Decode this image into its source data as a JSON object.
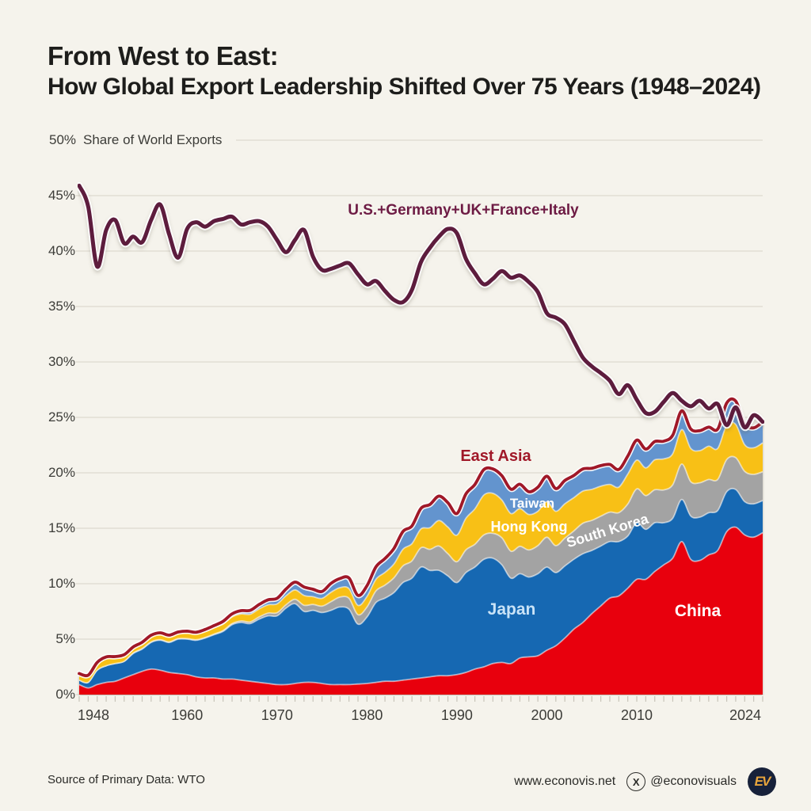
{
  "title": {
    "line1": "From West to East:",
    "line2": "How Global Export Leadership Shifted Over 75 Years (1948–2024)"
  },
  "y_axis": {
    "title": "Share of World Exports",
    "top_tick": "50%",
    "ticks": [
      "45%",
      "40%",
      "35%",
      "30%",
      "25%",
      "20%",
      "15%",
      "10%",
      "5%",
      "0%"
    ],
    "tick_values": [
      45,
      40,
      35,
      30,
      25,
      20,
      15,
      10,
      5,
      0
    ]
  },
  "x_axis": {
    "tick_years": [
      1948,
      1960,
      1970,
      1980,
      1990,
      2000,
      2010,
      2024
    ]
  },
  "annotations": {
    "west_label": "U.S.+Germany+UK+France+Italy",
    "east_asia_label": "East Asia",
    "taiwan_label": "Taiwan",
    "hong_kong_label": "Hong Kong",
    "south_korea_label": "South Korea",
    "japan_label": "Japan",
    "china_label": "China"
  },
  "footer": {
    "source": "Source of Primary Data: WTO",
    "website": "www.econovis.net",
    "x_icon": "X",
    "handle": "@econovisuals",
    "logo_text": "EV"
  },
  "colors": {
    "background": "#f5f3ec",
    "grid": "#ddd9cf",
    "tick": "#c8c4b9",
    "west_line": "#5d1a3e",
    "east_asia_line": "#a01828",
    "china": "#e8000d",
    "japan": "#1668b2",
    "south_korea": "#a3a3a3",
    "hong_kong": "#f8c013",
    "taiwan": "#6494ce"
  },
  "chart_data": {
    "type": "area",
    "title": "From West to East: How Global Export Leadership Shifted Over 75 Years (1948–2024)",
    "ylabel": "Share of World Exports",
    "ylim": [
      0,
      50
    ],
    "xlim": [
      1948,
      2024
    ],
    "grid": true,
    "legend_position": "inline-labels",
    "x": [
      1948,
      1949,
      1950,
      1951,
      1952,
      1953,
      1954,
      1955,
      1956,
      1957,
      1958,
      1959,
      1960,
      1961,
      1962,
      1963,
      1964,
      1965,
      1966,
      1967,
      1968,
      1969,
      1970,
      1971,
      1972,
      1973,
      1974,
      1975,
      1976,
      1977,
      1978,
      1979,
      1980,
      1981,
      1982,
      1983,
      1984,
      1985,
      1986,
      1987,
      1988,
      1989,
      1990,
      1991,
      1992,
      1993,
      1994,
      1995,
      1996,
      1997,
      1998,
      1999,
      2000,
      2001,
      2002,
      2003,
      2004,
      2005,
      2006,
      2007,
      2008,
      2009,
      2010,
      2011,
      2012,
      2013,
      2014,
      2015,
      2016,
      2017,
      2018,
      2019,
      2020,
      2021,
      2022,
      2023,
      2024
    ],
    "west_line_series": {
      "name": "U.S.+Germany+UK+France+Italy",
      "values": [
        45.9,
        44.0,
        38.6,
        41.9,
        42.8,
        40.7,
        41.3,
        40.8,
        42.8,
        44.2,
        41.5,
        39.4,
        42.0,
        42.6,
        42.2,
        42.7,
        42.9,
        43.1,
        42.4,
        42.6,
        42.7,
        42.2,
        41.0,
        39.9,
        41.0,
        41.9,
        39.5,
        38.3,
        38.4,
        38.7,
        38.9,
        37.9,
        37.0,
        37.3,
        36.4,
        35.6,
        35.4,
        36.5,
        39.0,
        40.3,
        41.3,
        42.0,
        41.6,
        39.3,
        38.0,
        37.0,
        37.5,
        38.2,
        37.6,
        37.8,
        37.2,
        36.3,
        34.4,
        34.0,
        33.4,
        31.9,
        30.4,
        29.6,
        29.0,
        28.3,
        27.1,
        27.9,
        26.6,
        25.4,
        25.5,
        26.4,
        27.2,
        26.5,
        26.0,
        26.5,
        25.8,
        26.2,
        24.3,
        25.9,
        24.1,
        25.2,
        24.6
      ]
    },
    "stacked_series": [
      {
        "name": "China",
        "color_key": "china",
        "values": [
          0.9,
          0.6,
          0.9,
          1.1,
          1.2,
          1.5,
          1.8,
          2.1,
          2.3,
          2.2,
          2.0,
          1.9,
          1.8,
          1.6,
          1.5,
          1.5,
          1.4,
          1.4,
          1.3,
          1.2,
          1.1,
          1.0,
          0.9,
          0.9,
          1.0,
          1.1,
          1.1,
          1.0,
          0.9,
          0.9,
          0.9,
          0.95,
          1.0,
          1.1,
          1.2,
          1.2,
          1.3,
          1.4,
          1.5,
          1.6,
          1.7,
          1.7,
          1.8,
          2.0,
          2.3,
          2.5,
          2.8,
          2.9,
          2.8,
          3.3,
          3.4,
          3.5,
          4.0,
          4.4,
          5.1,
          5.9,
          6.5,
          7.3,
          8.0,
          8.7,
          8.9,
          9.6,
          10.4,
          10.4,
          11.1,
          11.7,
          12.3,
          13.8,
          12.2,
          12.1,
          12.6,
          13.0,
          14.7,
          15.1,
          14.4,
          14.2,
          14.6
        ]
      },
      {
        "name": "Japan",
        "color_key": "japan",
        "values": [
          0.4,
          0.5,
          1.3,
          1.5,
          1.6,
          1.5,
          1.9,
          2.0,
          2.4,
          2.7,
          2.7,
          3.1,
          3.2,
          3.3,
          3.6,
          3.9,
          4.3,
          4.9,
          5.2,
          5.2,
          5.7,
          6.1,
          6.2,
          6.9,
          7.2,
          6.4,
          6.5,
          6.4,
          6.7,
          7.0,
          6.8,
          5.4,
          6.0,
          7.2,
          7.5,
          8.0,
          8.8,
          9.1,
          10.0,
          9.6,
          9.5,
          9.0,
          8.3,
          9.0,
          9.2,
          9.7,
          9.5,
          8.8,
          7.7,
          7.6,
          7.2,
          7.4,
          7.5,
          6.6,
          6.5,
          6.3,
          6.2,
          5.7,
          5.4,
          5.1,
          4.9,
          4.7,
          5.1,
          4.5,
          4.4,
          3.8,
          3.6,
          3.8,
          3.9,
          3.9,
          3.8,
          3.6,
          3.6,
          3.4,
          3.0,
          3.0,
          2.9
        ]
      },
      {
        "name": "South Korea",
        "color_key": "south_korea",
        "values": [
          0.0,
          0.0,
          0.0,
          0.0,
          0.0,
          0.0,
          0.05,
          0.05,
          0.05,
          0.05,
          0.05,
          0.05,
          0.05,
          0.05,
          0.05,
          0.06,
          0.08,
          0.1,
          0.14,
          0.16,
          0.2,
          0.25,
          0.28,
          0.3,
          0.39,
          0.56,
          0.53,
          0.58,
          0.78,
          0.89,
          0.98,
          0.85,
          0.9,
          1.05,
          1.17,
          1.33,
          1.51,
          1.56,
          1.74,
          1.9,
          2.2,
          2.0,
          1.88,
          2.05,
          2.05,
          2.2,
          2.25,
          2.44,
          2.43,
          2.47,
          2.44,
          2.53,
          2.69,
          2.43,
          2.51,
          2.56,
          2.75,
          2.71,
          2.69,
          2.66,
          2.61,
          2.89,
          3.05,
          3.04,
          2.97,
          2.96,
          3.02,
          3.19,
          3.1,
          3.1,
          3.0,
          2.8,
          2.9,
          2.87,
          2.73,
          2.66,
          2.6
        ]
      },
      {
        "name": "Hong Kong",
        "color_key": "hong_kong",
        "values": [
          0.55,
          0.6,
          0.65,
          0.75,
          0.55,
          0.52,
          0.45,
          0.47,
          0.5,
          0.5,
          0.47,
          0.45,
          0.54,
          0.52,
          0.55,
          0.56,
          0.58,
          0.6,
          0.63,
          0.68,
          0.72,
          0.75,
          0.8,
          0.82,
          0.85,
          0.88,
          0.7,
          0.7,
          0.85,
          0.85,
          0.88,
          0.85,
          0.95,
          1.05,
          1.15,
          1.25,
          1.5,
          1.55,
          1.7,
          1.95,
          2.3,
          2.4,
          2.4,
          2.85,
          3.2,
          3.6,
          3.6,
          3.4,
          3.4,
          3.4,
          3.2,
          3.1,
          3.2,
          3.1,
          3.1,
          3.0,
          2.9,
          2.8,
          2.7,
          2.5,
          2.3,
          2.7,
          2.6,
          2.5,
          2.7,
          2.8,
          2.8,
          3.1,
          3.0,
          2.9,
          3.0,
          2.8,
          3.1,
          3.0,
          2.4,
          2.4,
          2.6
        ]
      },
      {
        "name": "Taiwan",
        "color_key": "taiwan",
        "values": [
          0.05,
          0.05,
          0.05,
          0.05,
          0.08,
          0.08,
          0.09,
          0.1,
          0.1,
          0.12,
          0.14,
          0.14,
          0.13,
          0.15,
          0.17,
          0.2,
          0.25,
          0.28,
          0.3,
          0.35,
          0.4,
          0.45,
          0.5,
          0.6,
          0.7,
          0.77,
          0.67,
          0.62,
          0.8,
          0.83,
          0.95,
          0.9,
          0.97,
          1.12,
          1.25,
          1.4,
          1.6,
          1.6,
          1.85,
          2.1,
          2.2,
          2.2,
          1.95,
          2.2,
          2.2,
          2.3,
          2.2,
          2.2,
          2.2,
          2.2,
          2.05,
          2.17,
          2.3,
          2.05,
          2.1,
          2.0,
          2.0,
          1.9,
          1.86,
          1.8,
          1.6,
          1.63,
          1.8,
          1.7,
          1.65,
          1.6,
          1.67,
          1.7,
          1.76,
          1.8,
          1.72,
          1.74,
          2.0,
          2.1,
          1.9,
          1.8,
          1.9
        ]
      }
    ],
    "east_asia_total_note": "East Asia line = sum of stacked series"
  }
}
